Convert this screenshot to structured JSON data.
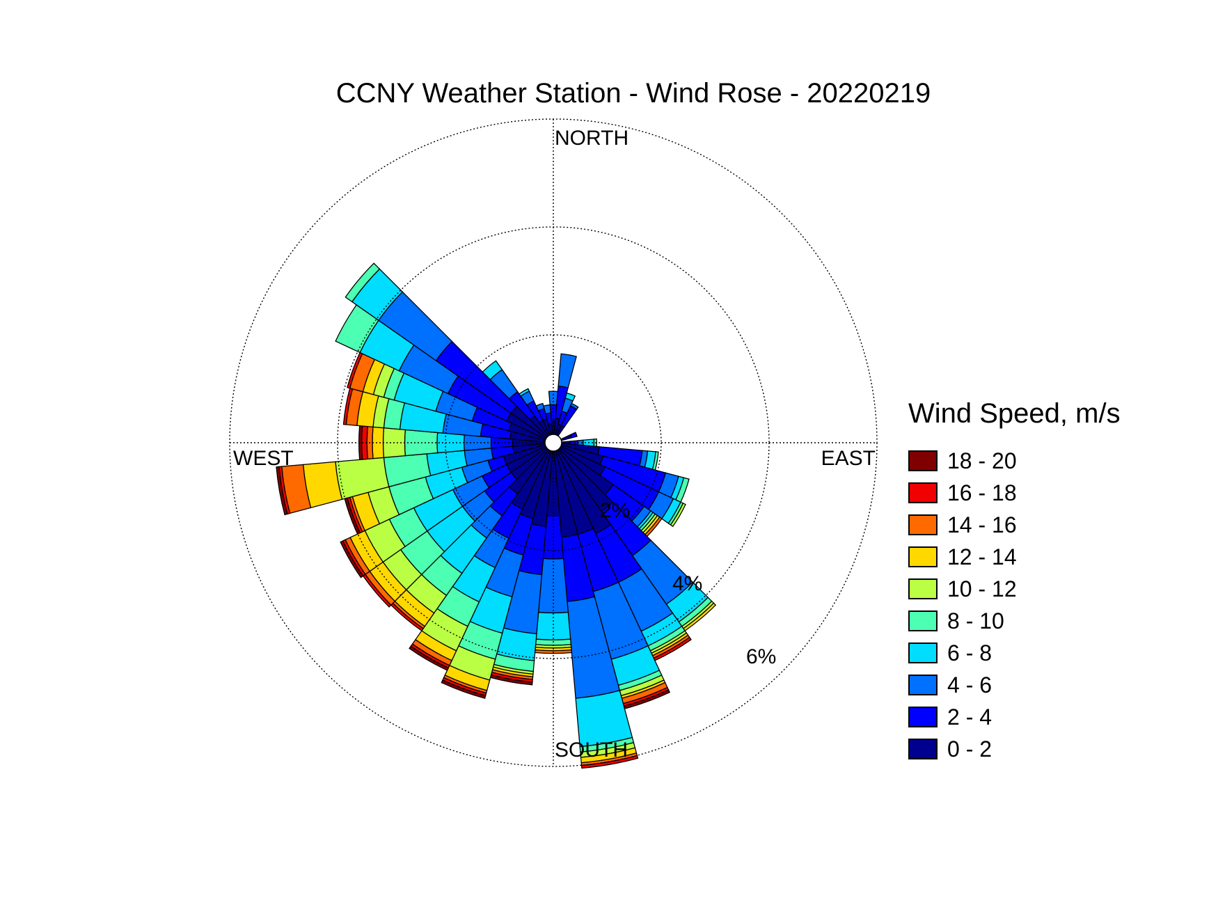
{
  "chart_data": {
    "type": "wind-rose",
    "title": "CCNY Weather Station - Wind Rose - 20220219",
    "direction_labels": {
      "north": "NORTH",
      "south": "SOUTH",
      "east": "EAST",
      "west": "WEST"
    },
    "ring_labels": [
      "2%",
      "4%",
      "6%"
    ],
    "ring_values": [
      2,
      4,
      6
    ],
    "rmax": 6,
    "legend_title": "Wind Speed, m/s",
    "bins": [
      {
        "label": "0 - 2",
        "color": "#00008F"
      },
      {
        "label": "2 - 4",
        "color": "#0000FF"
      },
      {
        "label": "4 - 6",
        "color": "#0070FF"
      },
      {
        "label": "6 - 8",
        "color": "#00DDFF"
      },
      {
        "label": "8 - 10",
        "color": "#4CFFB2"
      },
      {
        "label": "10 - 12",
        "color": "#BAFF44"
      },
      {
        "label": "12 - 14",
        "color": "#FFD800"
      },
      {
        "label": "14 - 16",
        "color": "#FF6A00"
      },
      {
        "label": "16 - 18",
        "color": "#F00000"
      },
      {
        "label": "18 - 20",
        "color": "#800000"
      }
    ],
    "sector_width_deg": 10,
    "sectors": [
      {
        "dir": 0,
        "cum": [
          0.25,
          0.55,
          0.8
        ]
      },
      {
        "dir": 10,
        "cum": [
          0.3,
          0.9,
          1.5
        ]
      },
      {
        "dir": 20,
        "cum": [
          0.2,
          0.45,
          0.7,
          0.8
        ]
      },
      {
        "dir": 30,
        "cum": [
          0.2,
          0.6,
          0.65
        ]
      },
      {
        "dir": 70,
        "cum": [
          0.2,
          0.3
        ]
      },
      {
        "dir": 90,
        "cum": [
          0.15,
          0.3,
          0.4,
          0.6,
          0.65
        ]
      },
      {
        "dir": 100,
        "cum": [
          0.7,
          1.5,
          1.6,
          1.75,
          1.8
        ]
      },
      {
        "dir": 110,
        "cum": [
          0.8,
          2.0,
          2.25,
          2.35,
          2.45
        ]
      },
      {
        "dir": 120,
        "cum": [
          0.9,
          2.0,
          2.3,
          2.45,
          2.5,
          2.55
        ]
      },
      {
        "dir": 130,
        "cum": [
          1.2,
          1.9,
          2.05,
          2.1,
          2.15,
          2.2,
          2.25,
          2.3
        ]
      },
      {
        "dir": 140,
        "cum": [
          1.4,
          2.4,
          3.5,
          3.9,
          4.0,
          4.05,
          4.1
        ]
      },
      {
        "dir": 150,
        "cum": [
          1.7,
          2.7,
          3.7,
          4.0,
          4.1,
          4.15,
          4.2,
          4.25,
          4.3
        ]
      },
      {
        "dir": 160,
        "cum": [
          1.6,
          2.7,
          4.0,
          4.5,
          4.6,
          4.7,
          4.75,
          4.85,
          4.9,
          4.95
        ]
      },
      {
        "dir": 170,
        "cum": [
          1.6,
          2.8,
          4.6,
          5.5,
          5.6,
          5.7,
          5.8,
          5.85,
          5.9
        ]
      },
      {
        "dir": 180,
        "cum": [
          1.2,
          2.0,
          3.0,
          3.5,
          3.6,
          3.65,
          3.7,
          3.75
        ]
      },
      {
        "dir": 190,
        "cum": [
          1.4,
          2.3,
          3.4,
          3.9,
          4.1,
          4.15,
          4.2,
          4.25,
          4.3,
          4.35
        ]
      },
      {
        "dir": 200,
        "cum": [
          1.3,
          2.0,
          2.8,
          3.5,
          4.0,
          4.4,
          4.6,
          4.65,
          4.7,
          4.75
        ]
      },
      {
        "dir": 210,
        "cum": [
          1.2,
          1.8,
          2.4,
          3.1,
          3.6,
          4.1,
          4.3,
          4.4,
          4.45,
          4.5
        ]
      },
      {
        "dir": 220,
        "cum": [
          1.0,
          1.5,
          2.0,
          2.8,
          3.3,
          3.7,
          4.0,
          4.05,
          4.1
        ]
      },
      {
        "dir": 230,
        "cum": [
          0.8,
          1.4,
          1.9,
          2.7,
          3.3,
          3.7,
          4.0,
          4.1,
          4.15
        ]
      },
      {
        "dir": 240,
        "cum": [
          0.8,
          1.3,
          1.9,
          2.7,
          3.2,
          3.7,
          4.0,
          4.1,
          4.15,
          4.2
        ]
      },
      {
        "dir": 250,
        "cum": [
          0.8,
          1.1,
          1.6,
          2.3,
          3.0,
          3.4,
          3.7,
          3.75,
          3.8,
          3.85
        ]
      },
      {
        "dir": 260,
        "cum": [
          0.6,
          1.0,
          1.5,
          2.2,
          3.0,
          3.9,
          4.5,
          4.9,
          4.95,
          5.0
        ]
      },
      {
        "dir": 270,
        "cum": [
          0.6,
          1.0,
          1.5,
          2.0,
          2.6,
          3.0,
          3.2,
          3.3,
          3.4,
          3.45
        ]
      },
      {
        "dir": 280,
        "cum": [
          0.65,
          1.2,
          1.9,
          2.7,
          3.0,
          3.2,
          3.5,
          3.7,
          3.75
        ]
      },
      {
        "dir": 290,
        "cum": [
          0.7,
          1.4,
          2.1,
          2.9,
          3.1,
          3.3,
          3.5,
          3.75,
          3.8
        ]
      },
      {
        "dir": 300,
        "cum": [
          0.8,
          2.0,
          3.0,
          3.8,
          4.3
        ]
      },
      {
        "dir": 310,
        "cum": [
          0.8,
          2.5,
          3.8,
          4.4,
          4.55
        ]
      },
      {
        "dir": 320,
        "cum": [
          0.45,
          1.0,
          1.5,
          1.7
        ]
      },
      {
        "dir": 330,
        "cum": [
          0.3,
          0.7,
          0.9,
          0.95
        ]
      },
      {
        "dir": 340,
        "cum": [
          0.3,
          0.5,
          0.6
        ]
      },
      {
        "dir": 350,
        "cum": [
          0.2,
          0.4,
          0.55
        ]
      }
    ]
  }
}
